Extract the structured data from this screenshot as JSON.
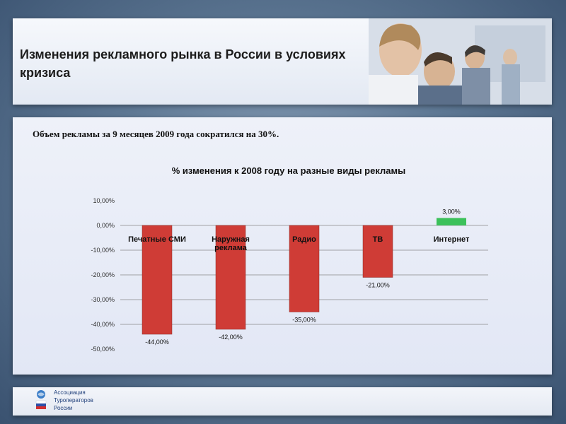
{
  "header": {
    "title": "Изменения рекламного рынка в России в условиях кризиса"
  },
  "main": {
    "subtitle": "Объем рекламы за 9 месяцев 2009 года сократился на 30%."
  },
  "footer": {
    "logo_lines": [
      "Ассоциация",
      "Туроператоров",
      "России"
    ]
  },
  "colors": {
    "negative_bar": "#cf3c36",
    "positive_bar": "#3cc15a",
    "grid": "#888888"
  },
  "chart_data": {
    "type": "bar",
    "title": "% изменения к 2008 году на разные виды рекламы",
    "categories": [
      "Печатные СМИ",
      "Наружная реклама",
      "Радио",
      "ТВ",
      "Интернет"
    ],
    "values": [
      -44,
      -42,
      -35,
      -21,
      3
    ],
    "value_labels": [
      "-44,00%",
      "-42,00%",
      "-35,00%",
      "-21,00%",
      "3,00%"
    ],
    "yticks": [
      "10,00%",
      "0,00%",
      "-10,00%",
      "-20,00%",
      "-30,00%",
      "-40,00%",
      "-50,00%"
    ],
    "ylim": [
      -50,
      10
    ],
    "grid": true,
    "legend": false
  }
}
